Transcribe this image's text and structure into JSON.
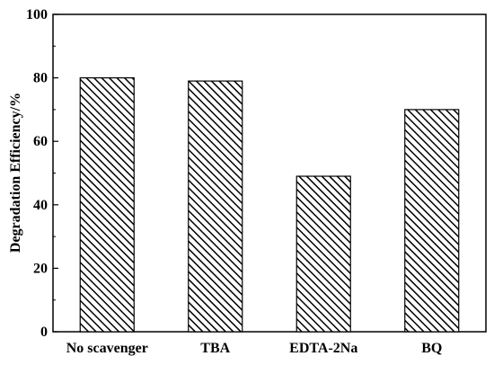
{
  "chart_data": {
    "type": "bar",
    "title": "",
    "xlabel": "",
    "ylabel": "Degradation Efficiency/%",
    "categories": [
      "No scavenger",
      "TBA",
      "EDTA-2Na",
      "BQ"
    ],
    "values": [
      80,
      79,
      49,
      70
    ],
    "ylim": [
      0,
      100
    ],
    "yticks": [
      0,
      20,
      40,
      60,
      80,
      100
    ],
    "grid": false,
    "legend": "none",
    "bar_fill": "hatched diagonal",
    "colors": {
      "bar_edge": "#000000",
      "hatch": "#000000",
      "background": "#ffffff",
      "axis": "#000000"
    }
  }
}
